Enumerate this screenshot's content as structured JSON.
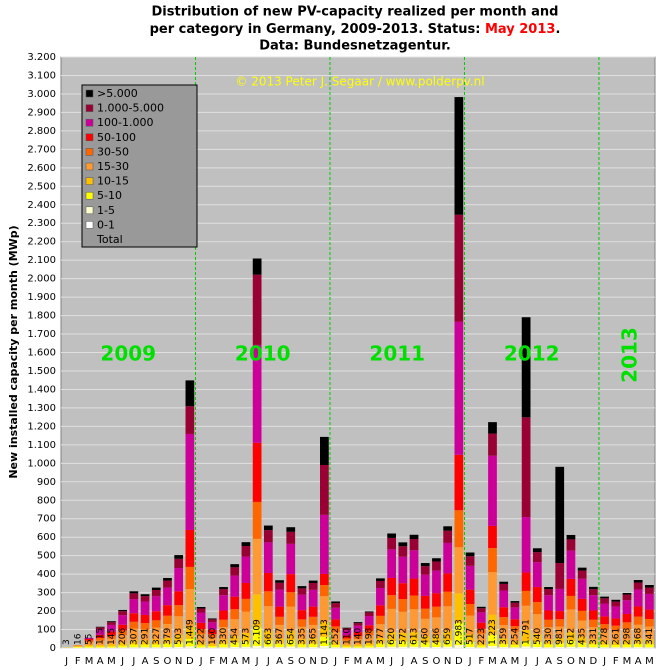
{
  "chart_data": {
    "type": "stacked-bar",
    "title_line1": "Distribution  of new PV-capacity realized per month and",
    "title_line2": "per category in Germany, 2009-2013. Status: ",
    "status": "May 2013",
    "status_end": ".",
    "title_line3": "Data: Bundesnetzagentur.",
    "copyright": "© 2013 Peter J. Segaar / www.polderpv.nl",
    "y_label": "New installed capacity per month (MWp)",
    "years": [
      "2009",
      "2010",
      "2011",
      "2012",
      "2013"
    ],
    "categories": [
      "J",
      "F",
      "M",
      "A",
      "M",
      "J",
      "J",
      "A",
      "S",
      "O",
      "N",
      "D",
      "J",
      "F",
      "M",
      "A",
      "M",
      "J",
      "J",
      "A",
      "S",
      "O",
      "N",
      "D",
      "J",
      "F",
      "M",
      "A",
      "M",
      "J",
      "J",
      "A",
      "S",
      "O",
      "N",
      "D",
      "J",
      "F",
      "M",
      "A",
      "M",
      "J",
      "J",
      "A",
      "S",
      "O",
      "N",
      "D",
      "J",
      "F",
      "M",
      "A",
      "M"
    ],
    "series": [
      {
        "name": "0-1",
        "color": "#ffffff",
        "values": [
          0,
          0,
          0,
          1,
          1,
          1,
          1,
          1,
          1,
          1,
          1,
          1,
          1,
          1,
          1,
          1,
          1,
          1,
          1,
          1,
          1,
          1,
          1,
          1,
          1,
          1,
          1,
          1,
          1,
          1,
          1,
          1,
          1,
          1,
          1,
          1,
          1,
          1,
          1,
          1,
          1,
          1,
          1,
          1,
          1,
          1,
          1,
          1,
          1,
          1,
          1,
          1,
          1
        ]
      },
      {
        "name": "1-5",
        "color": "#ffffcc",
        "values": [
          1,
          2,
          2,
          1,
          1,
          2,
          3,
          3,
          3,
          4,
          5,
          8,
          2,
          2,
          3,
          5,
          6,
          10,
          7,
          4,
          7,
          3,
          4,
          10,
          3,
          1,
          1,
          2,
          4,
          6,
          6,
          6,
          5,
          5,
          7,
          15,
          5,
          2,
          10,
          4,
          3,
          8,
          5,
          3,
          5,
          6,
          4,
          3,
          3,
          3,
          3,
          4,
          3
        ]
      },
      {
        "name": "5-10",
        "color": "#ffff00",
        "values": [
          1,
          4,
          6,
          6,
          7,
          10,
          15,
          15,
          16,
          19,
          25,
          40,
          11,
          8,
          17,
          23,
          29,
          100,
          33,
          18,
          33,
          17,
          18,
          50,
          13,
          6,
          7,
          10,
          19,
          31,
          29,
          31,
          23,
          24,
          33,
          120,
          26,
          11,
          60,
          18,
          13,
          30,
          27,
          17,
          20,
          31,
          22,
          17,
          14,
          13,
          15,
          18,
          17
        ]
      },
      {
        "name": "10-15",
        "color": "#ffc000",
        "values": [
          1,
          4,
          8,
          9,
          12,
          16,
          25,
          23,
          26,
          30,
          40,
          70,
          18,
          13,
          26,
          36,
          46,
          180,
          53,
          29,
          52,
          27,
          29,
          80,
          20,
          9,
          11,
          16,
          30,
          50,
          46,
          49,
          37,
          39,
          53,
          160,
          41,
          18,
          110,
          29,
          20,
          60,
          43,
          26,
          30,
          49,
          35,
          26,
          22,
          21,
          24,
          29,
          27
        ]
      },
      {
        "name": "15-30",
        "color": "#ff9933",
        "values": [
          0,
          4,
          15,
          23,
          29,
          41,
          61,
          58,
          65,
          76,
          101,
          200,
          44,
          32,
          66,
          91,
          115,
          300,
          133,
          73,
          131,
          67,
          73,
          140,
          50,
          22,
          28,
          40,
          75,
          124,
          114,
          123,
          92,
          97,
          132,
          250,
          103,
          45,
          230,
          72,
          51,
          130,
          108,
          66,
          60,
          122,
          87,
          66,
          56,
          52,
          60,
          74,
          68
        ]
      },
      {
        "name": "30-50",
        "color": "#ff6600",
        "values": [
          0,
          2,
          10,
          14,
          17,
          25,
          37,
          35,
          39,
          45,
          60,
          120,
          27,
          19,
          40,
          54,
          69,
          200,
          80,
          44,
          78,
          40,
          44,
          60,
          30,
          13,
          17,
          24,
          45,
          74,
          69,
          74,
          55,
          58,
          79,
          200,
          62,
          27,
          130,
          43,
          30,
          80,
          65,
          40,
          40,
          73,
          52,
          40,
          33,
          31,
          36,
          44,
          41
        ]
      },
      {
        "name": "50-100",
        "color": "#ff0000",
        "values": [
          0,
          0,
          8,
          17,
          22,
          31,
          46,
          44,
          49,
          57,
          75,
          200,
          33,
          24,
          50,
          68,
          86,
          320,
          99,
          55,
          98,
          50,
          55,
          60,
          38,
          17,
          21,
          30,
          57,
          93,
          86,
          92,
          69,
          73,
          99,
          300,
          78,
          33,
          120,
          54,
          38,
          100,
          81,
          50,
          44,
          92,
          65,
          50,
          42,
          39,
          45,
          55,
          51
        ]
      },
      {
        "name": "100-1.000",
        "color": "#cc0099",
        "values": [
          0,
          0,
          6,
          29,
          36,
          52,
          77,
          73,
          82,
          95,
          126,
          520,
          56,
          40,
          83,
          114,
          143,
          530,
          166,
          92,
          164,
          84,
          91,
          320,
          63,
          28,
          35,
          50,
          94,
          155,
          143,
          153,
          115,
          122,
          165,
          720,
          129,
          56,
          380,
          90,
          64,
          300,
          135,
          83,
          120,
          153,
          109,
          83,
          70,
          65,
          75,
          92,
          85
        ]
      },
      {
        "name": "1.000-5.000",
        "color": "#990033",
        "values": [
          0,
          0,
          0,
          12,
          15,
          21,
          31,
          29,
          33,
          38,
          50,
          150,
          22,
          16,
          33,
          45,
          57,
          380,
          66,
          37,
          65,
          34,
          37,
          270,
          25,
          11,
          14,
          20,
          38,
          62,
          57,
          61,
          46,
          49,
          66,
          580,
          52,
          22,
          120,
          36,
          25,
          540,
          54,
          33,
          140,
          61,
          44,
          33,
          28,
          26,
          30,
          37,
          34
        ]
      },
      {
        "name": ">5.000",
        "color": "#000000",
        "values": [
          0,
          0,
          0,
          3,
          5,
          7,
          11,
          10,
          13,
          14,
          20,
          140,
          8,
          5,
          11,
          17,
          21,
          88,
          25,
          14,
          25,
          12,
          13,
          152,
          9,
          2,
          5,
          5,
          14,
          24,
          21,
          23,
          17,
          18,
          24,
          637,
          20,
          8,
          62,
          12,
          9,
          542,
          21,
          11,
          521,
          24,
          16,
          12,
          9,
          10,
          9,
          14,
          14
        ]
      }
    ],
    "total": {
      "name": "Total",
      "values": [
        3,
        16,
        55,
        115,
        145,
        206,
        307,
        291,
        327,
        379,
        503,
        1449,
        222,
        160,
        330,
        454,
        573,
        2109,
        663,
        367,
        654,
        335,
        365,
        1143,
        252,
        110,
        140,
        198,
        377,
        620,
        572,
        613,
        460,
        486,
        659,
        2983,
        517,
        223,
        1223,
        359,
        254,
        1791,
        540,
        330,
        981,
        612,
        435,
        331,
        278,
        261,
        298,
        368,
        341
      ],
      "value_labels": [
        "3",
        "16",
        "55",
        "115",
        "145",
        "206",
        "307",
        "291",
        "327",
        "379",
        "503",
        "1.449",
        "222",
        "160",
        "330",
        "454",
        "573",
        "2.109",
        "663",
        "367",
        "654",
        "335",
        "365",
        "1.143",
        "252",
        "110",
        "140",
        "198",
        "377",
        "620",
        "572",
        "613",
        "460",
        "486",
        "659",
        "2.983",
        "517",
        "223",
        "1.223",
        "359",
        "254",
        "1.791",
        "540",
        "330",
        "981",
        "612",
        "435",
        "331",
        "278",
        "261",
        "298",
        "368",
        "341"
      ]
    },
    "ylim": [
      0,
      3200
    ],
    "yticks": [
      0,
      100,
      200,
      300,
      400,
      500,
      600,
      700,
      800,
      900,
      {
        "value": 1000,
        "label": "1.000"
      },
      {
        "value": 1100,
        "label": "1.100"
      },
      {
        "value": 1200,
        "label": "1.200"
      },
      {
        "value": 1300,
        "label": "1.300"
      },
      {
        "value": 1400,
        "label": "1.400"
      },
      {
        "value": 1500,
        "label": "1.500"
      },
      {
        "value": 1600,
        "label": "1.600"
      },
      {
        "value": 1700,
        "label": "1.700"
      },
      {
        "value": 1800,
        "label": "1.800"
      },
      {
        "value": 1900,
        "label": "1.900"
      },
      {
        "value": 2000,
        "label": "2.000"
      },
      {
        "value": 2100,
        "label": "2.100"
      },
      {
        "value": 2200,
        "label": "2.200"
      },
      {
        "value": 2300,
        "label": "2.300"
      },
      {
        "value": 2400,
        "label": "2.400"
      },
      {
        "value": 2500,
        "label": "2.500"
      },
      {
        "value": 2600,
        "label": "2.600"
      },
      {
        "value": 2700,
        "label": "2.700"
      },
      {
        "value": 2800,
        "label": "2.800"
      },
      {
        "value": 2900,
        "label": "2.900"
      },
      {
        "value": 3000,
        "label": "3.000"
      },
      {
        "value": 3100,
        "label": "3.100"
      },
      {
        "value": 3200,
        "label": "3.200"
      }
    ],
    "grid": true
  }
}
